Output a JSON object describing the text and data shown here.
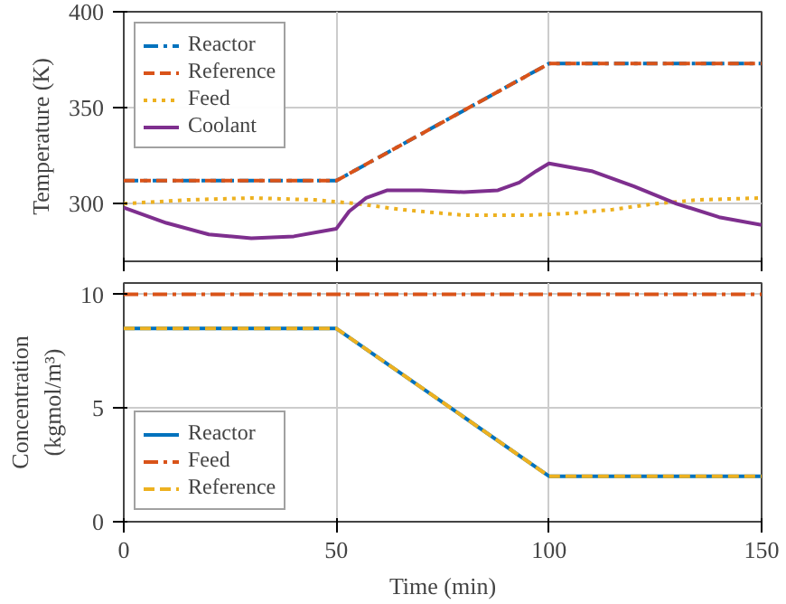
{
  "chart_data": [
    {
      "type": "line",
      "ylabel": "Temperature (K)",
      "xlim": [
        0,
        150
      ],
      "ylim": [
        270,
        400
      ],
      "xticks": [
        0,
        50,
        100,
        150
      ],
      "yticks": [
        300,
        350,
        400
      ],
      "tick_labels": "y",
      "grid": true,
      "legend": "top left",
      "series": [
        {
          "name": "Reactor",
          "color": "#0072bd",
          "line_style": "dashdot",
          "x": [
            0,
            50,
            100,
            150
          ],
          "values": [
            312,
            312,
            373,
            373
          ]
        },
        {
          "name": "Reference",
          "color": "#d95319",
          "line_style": "dashed",
          "x": [
            0,
            50,
            100,
            150
          ],
          "values": [
            312,
            312,
            373,
            373
          ]
        },
        {
          "name": "Feed",
          "color": "#edb120",
          "line_style": "dotted",
          "x": [
            0,
            15,
            30,
            45,
            55,
            65,
            80,
            95,
            105,
            115,
            125,
            135,
            150
          ],
          "values": [
            300,
            302,
            303,
            302,
            300,
            297,
            294,
            294,
            295,
            297,
            300,
            302,
            303
          ]
        },
        {
          "name": "Coolant",
          "color": "#7e2f8e",
          "line_style": "solid",
          "x": [
            0,
            10,
            20,
            30,
            40,
            50,
            53,
            57,
            62,
            70,
            80,
            88,
            93,
            97,
            100,
            110,
            120,
            130,
            140,
            150
          ],
          "values": [
            298,
            290,
            284,
            282,
            283,
            287,
            296,
            303,
            307,
            307,
            306,
            307,
            311,
            317,
            321,
            317,
            309,
            300,
            293,
            289
          ]
        }
      ]
    },
    {
      "type": "line",
      "xlabel": "Time (min)",
      "ylabel": "Concentration\n(kgmol/m³)",
      "xlim": [
        0,
        150
      ],
      "ylim": [
        0,
        10.5
      ],
      "xticks": [
        0,
        50,
        100,
        150
      ],
      "yticks": [
        0,
        5,
        10
      ],
      "grid": true,
      "legend": "bottom left",
      "series": [
        {
          "name": "Reactor",
          "color": "#0072bd",
          "line_style": "solid",
          "x": [
            0,
            50,
            100,
            150
          ],
          "values": [
            8.5,
            8.5,
            2,
            2
          ]
        },
        {
          "name": "Feed",
          "color": "#d95319",
          "line_style": "dashdot",
          "x": [
            0,
            150
          ],
          "values": [
            10,
            10
          ]
        },
        {
          "name": "Reference",
          "color": "#edb120",
          "line_style": "dashed",
          "x": [
            0,
            50,
            100,
            150
          ],
          "values": [
            8.5,
            8.5,
            2,
            2
          ]
        }
      ]
    }
  ]
}
